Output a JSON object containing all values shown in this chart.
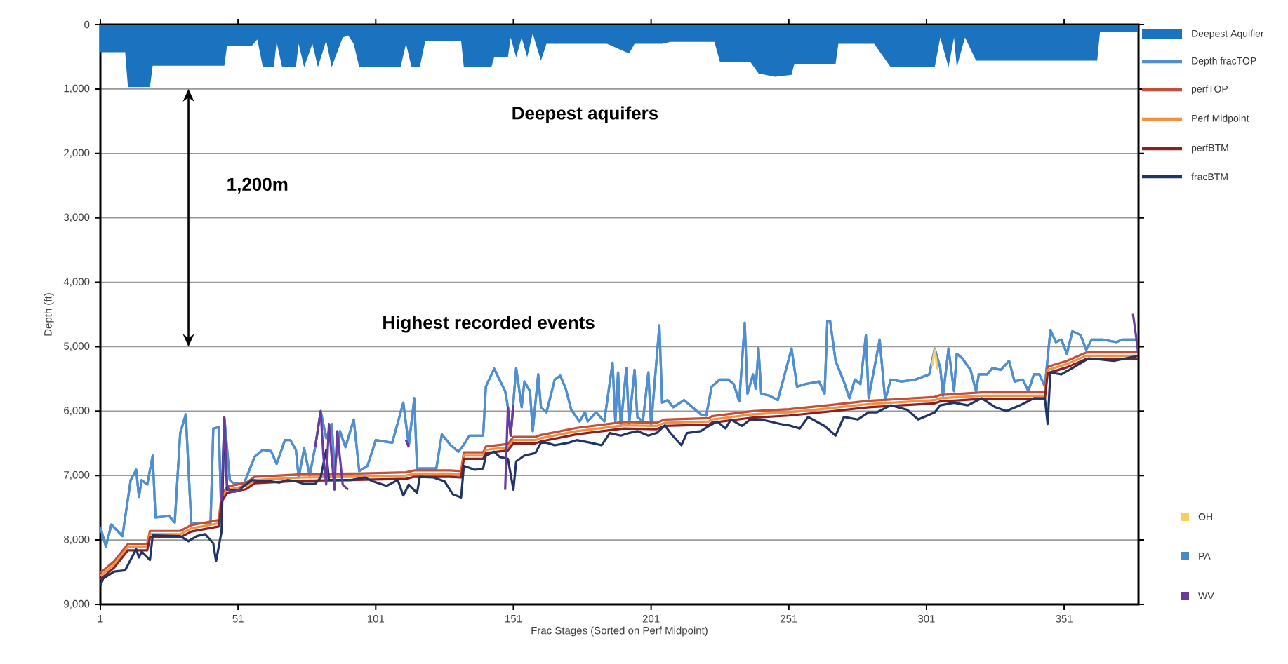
{
  "chart_data": {
    "type": "line",
    "xlabel": "Frac Stages (Sorted on Perf Midpoint)",
    "ylabel": "Depth (ft)",
    "xlim": [
      1,
      378
    ],
    "xticks": [
      1,
      51,
      101,
      151,
      201,
      251,
      301,
      351
    ],
    "ylim": [
      9000,
      0
    ],
    "yticks": [
      0,
      {
        "value": 1000,
        "label": "1,000"
      },
      {
        "value": 2000,
        "label": "2,000"
      },
      {
        "value": 3000,
        "label": "3,000"
      },
      {
        "value": 4000,
        "label": "4,000"
      },
      {
        "value": 5000,
        "label": "5,000"
      },
      {
        "value": 6000,
        "label": "6,000"
      },
      {
        "value": 7000,
        "label": "7,000"
      },
      {
        "value": 8000,
        "label": "8,000"
      },
      {
        "value": 9000,
        "label": "9,000"
      }
    ],
    "grid": "y",
    "legend": "right",
    "annotations": [
      "Deepest aquifers",
      "1,200m",
      "Highest recorded events"
    ],
    "series": [
      {
        "name": "Deepest Aquifier",
        "type": "area",
        "color": "#1b72be",
        "x": [
          1,
          10,
          11,
          19,
          20,
          46,
          47,
          56,
          58,
          60,
          64,
          65,
          67,
          72,
          73,
          75,
          78,
          80,
          83,
          85,
          89,
          91,
          93,
          95,
          110,
          112,
          114,
          117,
          119,
          132,
          133,
          143,
          144,
          149,
          150,
          152,
          154,
          156,
          158,
          161,
          163,
          173,
          185,
          193,
          195,
          205,
          208,
          224,
          226,
          237,
          240,
          246,
          252,
          253,
          268,
          269,
          282,
          288,
          304,
          306,
          309,
          311,
          312,
          315,
          319,
          363,
          364,
          378
        ],
        "values": [
          430,
          430,
          970,
          970,
          640,
          640,
          330,
          330,
          230,
          660,
          660,
          270,
          660,
          660,
          300,
          660,
          300,
          660,
          250,
          660,
          200,
          170,
          300,
          660,
          660,
          300,
          660,
          660,
          250,
          250,
          660,
          660,
          510,
          510,
          200,
          510,
          200,
          510,
          140,
          560,
          300,
          300,
          300,
          450,
          300,
          300,
          270,
          270,
          580,
          580,
          760,
          810,
          780,
          610,
          610,
          300,
          300,
          660,
          660,
          200,
          660,
          200,
          660,
          200,
          560,
          560,
          120,
          120
        ]
      },
      {
        "name": "Depth fracTOP",
        "color": "#4f8fd0",
        "x": [
          1,
          3,
          5,
          9,
          12,
          14,
          15,
          16,
          18,
          20,
          21,
          26,
          28,
          30,
          32,
          34,
          41,
          42,
          44,
          45,
          46,
          48,
          49,
          53,
          57,
          60,
          63,
          65,
          68,
          70,
          72,
          73,
          75,
          77,
          79,
          81,
          83,
          85,
          86,
          88,
          90,
          93,
          95,
          98,
          101,
          107,
          111,
          113,
          115,
          116,
          123,
          125,
          128,
          131,
          133,
          135,
          140,
          141,
          144,
          148,
          149,
          150,
          152,
          154,
          155,
          157,
          158,
          160,
          161,
          163,
          166,
          168,
          170,
          172,
          175,
          177,
          178,
          181,
          184,
          187,
          188,
          189,
          190,
          192,
          193,
          195,
          196,
          198,
          200,
          201,
          204,
          205,
          207,
          209,
          213,
          216,
          219,
          221,
          223,
          226,
          229,
          231,
          233,
          235,
          236,
          238,
          239,
          240,
          241,
          244,
          247,
          249,
          252,
          254,
          257,
          262,
          264,
          265,
          266,
          268,
          271,
          273,
          275,
          277,
          279,
          280,
          284,
          286,
          288,
          292,
          297,
          302,
          304,
          306,
          307,
          309,
          311,
          312,
          314,
          317,
          319,
          320,
          323,
          325,
          328,
          331,
          333,
          336,
          338,
          340,
          342,
          344,
          346,
          348,
          350,
          352,
          354,
          357,
          359,
          361,
          365,
          370,
          372,
          375,
          378
        ],
        "values": [
          7800,
          8100,
          7760,
          7940,
          7070,
          6910,
          7330,
          7070,
          7140,
          6690,
          7650,
          7630,
          7730,
          6340,
          6050,
          7740,
          7740,
          6270,
          6250,
          7730,
          6090,
          7070,
          7110,
          7140,
          6710,
          6600,
          6620,
          6820,
          6450,
          6450,
          6600,
          7030,
          6580,
          7000,
          6560,
          6000,
          6420,
          6200,
          6890,
          6310,
          6560,
          6130,
          6930,
          6850,
          6450,
          6490,
          5870,
          6530,
          5800,
          6890,
          6890,
          6360,
          6520,
          6630,
          6520,
          6380,
          6380,
          5620,
          5340,
          5690,
          5940,
          6380,
          5330,
          5940,
          5540,
          5690,
          6310,
          5430,
          5940,
          6020,
          5510,
          5450,
          5650,
          5980,
          6160,
          6020,
          6160,
          6020,
          6160,
          5250,
          6160,
          5400,
          6230,
          5330,
          6200,
          5360,
          6090,
          6160,
          5400,
          6230,
          4670,
          5870,
          5830,
          5940,
          5830,
          5940,
          6050,
          6070,
          5620,
          5510,
          5510,
          5580,
          5850,
          4630,
          5730,
          5430,
          5650,
          5020,
          5730,
          5760,
          5830,
          5510,
          5030,
          5620,
          5580,
          5540,
          5730,
          4600,
          4600,
          5220,
          5540,
          5800,
          5510,
          5580,
          4820,
          5800,
          4890,
          5830,
          5510,
          5540,
          5510,
          5430,
          5030,
          5330,
          5760,
          5030,
          5690,
          5110,
          5180,
          5360,
          5690,
          5430,
          5430,
          5330,
          5360,
          5220,
          5540,
          5510,
          5690,
          5430,
          5430,
          5620,
          4740,
          4930,
          4890,
          5110,
          4760,
          4820,
          5050,
          4890,
          4890,
          4930,
          4890,
          4890,
          4890
        ]
      },
      {
        "name": "perfTOP",
        "color": "#c0503a",
        "x": [
          1,
          6,
          11,
          18,
          19,
          30,
          34,
          44,
          45,
          47,
          54,
          57,
          74,
          92,
          112,
          115,
          128,
          132,
          133,
          140,
          141,
          149,
          151,
          159,
          161,
          174,
          191,
          203,
          206,
          222,
          223,
          238,
          251,
          265,
          280,
          304,
          306,
          321,
          344,
          345,
          352,
          359,
          378
        ],
        "values": [
          8510,
          8330,
          8060,
          8060,
          7860,
          7860,
          7770,
          7690,
          7310,
          7170,
          7110,
          7020,
          6980,
          6970,
          6950,
          6920,
          6920,
          6930,
          6640,
          6640,
          6550,
          6510,
          6400,
          6400,
          6370,
          6260,
          6170,
          6180,
          6130,
          6110,
          6080,
          6000,
          5970,
          5910,
          5840,
          5780,
          5750,
          5710,
          5710,
          5310,
          5220,
          5090,
          5090
        ]
      },
      {
        "name": "Perf Midpoint",
        "color": "#f39040",
        "x": [
          1,
          6,
          11,
          18,
          19,
          30,
          34,
          44,
          45,
          47,
          54,
          57,
          74,
          92,
          112,
          115,
          128,
          132,
          133,
          140,
          141,
          149,
          151,
          159,
          161,
          174,
          191,
          203,
          206,
          222,
          223,
          238,
          251,
          265,
          280,
          304,
          306,
          321,
          344,
          345,
          352,
          359,
          378
        ],
        "values": [
          8560,
          8380,
          8110,
          8110,
          7910,
          7910,
          7820,
          7740,
          7360,
          7220,
          7160,
          7070,
          7030,
          7020,
          7000,
          6970,
          6970,
          6980,
          6690,
          6690,
          6600,
          6560,
          6450,
          6450,
          6420,
          6310,
          6220,
          6230,
          6180,
          6160,
          6130,
          6050,
          6020,
          5960,
          5890,
          5830,
          5800,
          5760,
          5760,
          5360,
          5270,
          5140,
          5140
        ]
      },
      {
        "name": "perfBTM",
        "color": "#8b2020",
        "x": [
          1,
          6,
          11,
          18,
          19,
          30,
          34,
          44,
          45,
          47,
          54,
          57,
          74,
          92,
          112,
          115,
          128,
          132,
          133,
          140,
          141,
          149,
          151,
          159,
          161,
          174,
          191,
          203,
          206,
          222,
          223,
          238,
          251,
          265,
          280,
          304,
          306,
          321,
          344,
          345,
          352,
          359,
          378
        ],
        "values": [
          8610,
          8430,
          8160,
          8160,
          7960,
          7960,
          7870,
          7790,
          7410,
          7270,
          7210,
          7120,
          7080,
          7070,
          7050,
          7020,
          7020,
          7030,
          6740,
          6740,
          6650,
          6610,
          6500,
          6500,
          6470,
          6360,
          6270,
          6280,
          6230,
          6210,
          6180,
          6100,
          6070,
          6010,
          5940,
          5880,
          5850,
          5810,
          5810,
          5410,
          5320,
          5190,
          5190
        ]
      },
      {
        "name": "fracBTM",
        "color": "#1f3566",
        "x": [
          1,
          2,
          6,
          10,
          14,
          15,
          16,
          19,
          20,
          30,
          33,
          36,
          39,
          42,
          43,
          45,
          46,
          47,
          51,
          56,
          60,
          63,
          66,
          69,
          72,
          75,
          79,
          81,
          83,
          84,
          88,
          92,
          97,
          100,
          105,
          109,
          111,
          113,
          116,
          117,
          122,
          126,
          129,
          132,
          133,
          137,
          140,
          141,
          144,
          146,
          149,
          151,
          152,
          155,
          159,
          161,
          163,
          166,
          171,
          174,
          179,
          183,
          186,
          190,
          193,
          196,
          200,
          203,
          206,
          208,
          212,
          214,
          219,
          222,
          225,
          228,
          230,
          234,
          237,
          241,
          244,
          248,
          251,
          255,
          258,
          264,
          268,
          271,
          276,
          280,
          283,
          288,
          294,
          298,
          304,
          306,
          311,
          316,
          321,
          326,
          330,
          335,
          340,
          344,
          345,
          346,
          350,
          354,
          360,
          369,
          378
        ],
        "values": [
          8710,
          8600,
          8490,
          8470,
          8140,
          8270,
          8180,
          8310,
          7930,
          7940,
          8020,
          7940,
          7910,
          8050,
          8330,
          7870,
          6130,
          7220,
          7230,
          7070,
          7090,
          7090,
          7110,
          7070,
          7090,
          7130,
          7130,
          7030,
          6600,
          7070,
          7070,
          7070,
          7030,
          7090,
          7160,
          7070,
          7310,
          7140,
          7270,
          7020,
          7030,
          7090,
          7290,
          7340,
          6850,
          6910,
          6890,
          6690,
          6630,
          6710,
          6740,
          7220,
          6780,
          6690,
          6650,
          6490,
          6490,
          6530,
          6490,
          6450,
          6490,
          6530,
          6340,
          6380,
          6340,
          6310,
          6380,
          6340,
          6220,
          6340,
          6530,
          6340,
          6310,
          6230,
          6160,
          6270,
          6130,
          6230,
          6130,
          6130,
          6160,
          6200,
          6220,
          6270,
          6090,
          6230,
          6380,
          6090,
          6130,
          6020,
          6020,
          5910,
          5980,
          6130,
          6020,
          5910,
          5870,
          5910,
          5800,
          5940,
          6000,
          5910,
          5800,
          5800,
          6200,
          5400,
          5430,
          5330,
          5180,
          5220,
          5140
        ]
      },
      {
        "name": "OH",
        "color": "#f5d060",
        "x": [
          303,
          304,
          305
        ],
        "values": [
          5300,
          5050,
          5350
        ]
      },
      {
        "name": "PA",
        "color": "#4a88cc",
        "x": [
          1,
          3,
          5,
          9,
          12,
          14,
          15,
          16,
          18,
          20,
          21,
          26,
          28,
          30,
          32,
          34,
          41,
          42,
          44,
          45,
          46,
          48,
          49,
          53,
          57,
          60,
          63,
          65,
          68,
          70,
          72,
          73,
          75,
          77,
          79,
          81,
          83,
          85,
          86,
          88,
          90,
          93,
          95,
          98,
          101,
          107,
          111,
          113,
          115,
          116,
          123,
          125,
          128,
          131,
          133,
          135,
          140,
          141,
          144,
          148,
          149,
          150,
          152,
          154,
          155,
          157,
          158,
          160,
          161,
          163,
          166,
          168,
          170,
          172,
          175,
          177,
          178,
          181,
          184,
          187,
          188,
          189,
          190,
          192,
          193,
          195,
          196,
          198,
          200,
          201,
          204,
          205,
          207,
          209,
          213,
          216,
          219,
          221,
          223,
          226,
          229,
          231,
          233,
          235,
          236,
          238,
          239,
          240,
          241,
          244,
          247,
          249,
          252,
          254,
          257,
          262,
          264,
          265,
          266,
          268,
          271,
          273,
          275,
          277,
          279,
          280,
          284,
          286,
          288,
          292,
          297,
          302,
          304,
          306,
          307,
          309,
          311,
          312,
          314,
          317,
          319,
          320,
          323,
          325,
          328,
          331,
          333,
          336,
          338,
          340,
          342,
          344,
          346,
          348,
          350,
          352,
          354,
          357,
          359,
          361,
          365,
          370,
          372,
          375,
          378
        ],
        "values": [
          7800,
          8100,
          7760,
          7940,
          7070,
          6910,
          7330,
          7070,
          7140,
          6690,
          7650,
          7630,
          7730,
          6340,
          6050,
          7740,
          7740,
          6270,
          6250,
          7730,
          6090,
          7070,
          7110,
          7140,
          6710,
          6600,
          6620,
          6820,
          6450,
          6450,
          6600,
          7030,
          6580,
          7000,
          6560,
          6000,
          6420,
          6200,
          6890,
          6310,
          6560,
          6130,
          6930,
          6850,
          6450,
          6490,
          5870,
          6530,
          5800,
          6890,
          6890,
          6360,
          6520,
          6630,
          6520,
          6380,
          6380,
          5620,
          5340,
          5690,
          5940,
          6380,
          5330,
          5940,
          5540,
          5690,
          6310,
          5430,
          5940,
          6020,
          5510,
          5450,
          5650,
          5980,
          6160,
          6020,
          6160,
          6020,
          6160,
          5250,
          6160,
          5400,
          6230,
          5330,
          6200,
          5360,
          6090,
          6160,
          5400,
          6230,
          4670,
          5870,
          5830,
          5940,
          5830,
          5940,
          6050,
          6070,
          5620,
          5510,
          5510,
          5580,
          5850,
          4630,
          5730,
          5430,
          5650,
          5020,
          5730,
          5760,
          5830,
          5510,
          5030,
          5620,
          5580,
          5540,
          5730,
          4600,
          4600,
          5220,
          5540,
          5800,
          5510,
          5580,
          4820,
          5800,
          4890,
          5830,
          5510,
          5540,
          5510,
          5430,
          5030,
          5330,
          5760,
          5030,
          5690,
          5110,
          5180,
          5360,
          5690,
          5430,
          5430,
          5330,
          5360,
          5220,
          5540,
          5510,
          5690,
          5430,
          5430,
          5620,
          4740,
          4930,
          4890,
          5110,
          4760,
          4820,
          5050,
          4890,
          4890,
          4930,
          4890,
          4890,
          4890
        ]
      },
      {
        "name": "WV",
        "color": "#6a3a9e",
        "x": [
          45,
          46,
          47,
          48,
          50,
          52,
          53,
          79,
          81,
          82,
          83,
          84,
          86,
          87,
          89,
          91,
          92,
          112,
          113,
          114,
          148,
          149,
          150,
          151,
          152,
          376,
          377,
          378
        ],
        "values": [
          7400,
          6100,
          7150,
          7250,
          7250,
          7200,
          null,
          6560,
          6000,
          6700,
          7140,
          6200,
          7220,
          6310,
          7140,
          7220,
          null,
          6450,
          6560,
          null,
          7220,
          5940,
          6380,
          5910,
          null,
          4490,
          4800,
          5140
        ]
      }
    ]
  }
}
